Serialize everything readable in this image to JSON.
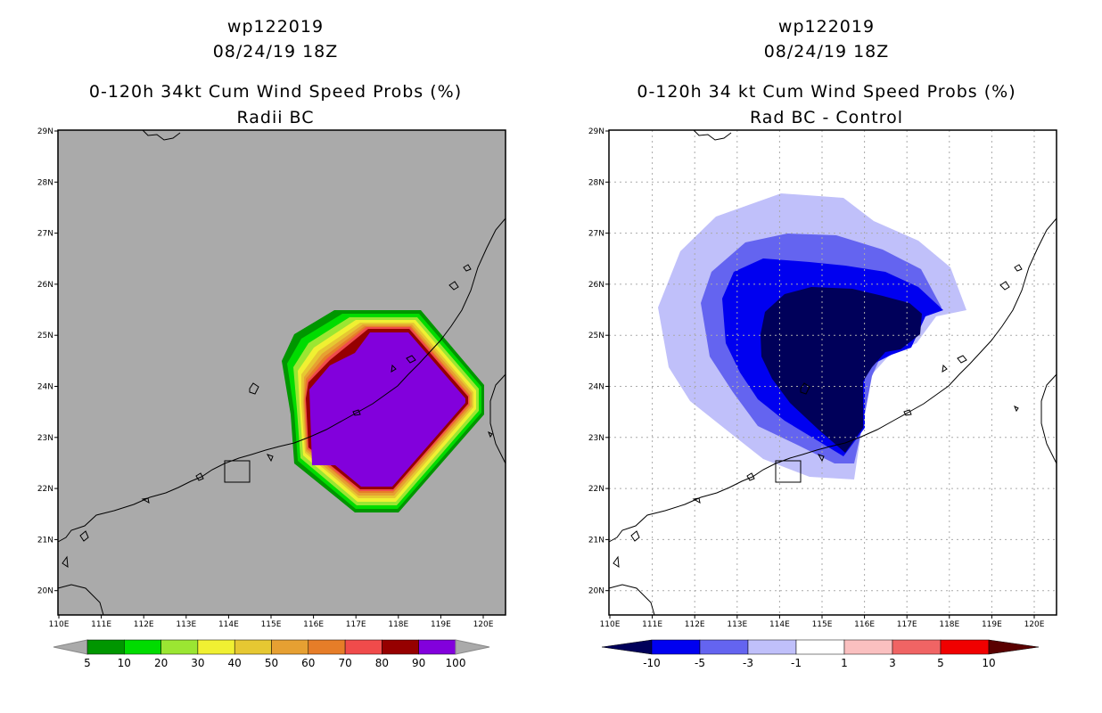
{
  "left": {
    "storm_id": "wp122019",
    "datetime": "08/24/19 18Z",
    "title": "0-120h 34kt Cum Wind Speed Probs (%)",
    "subtitle": "Radii BC",
    "colorbar": {
      "labels": [
        "5",
        "10",
        "20",
        "30",
        "40",
        "50",
        "60",
        "70",
        "80",
        "90",
        "100"
      ],
      "colors": [
        "#009600",
        "#00dc00",
        "#9be632",
        "#f0f032",
        "#e6c832",
        "#e6a032",
        "#e67d28",
        "#f04b4b",
        "#960000",
        "#8200dc"
      ],
      "end_color": "#aaaaaa"
    },
    "background_color": "#aaaaaa"
  },
  "right": {
    "storm_id": "wp122019",
    "datetime": "08/24/19 18Z",
    "title": "0-120h 34 kt Cum Wind Speed Probs (%)",
    "subtitle": "Rad BC - Control",
    "colorbar": {
      "labels": [
        "-10",
        "-5",
        "-3",
        "-1",
        "1",
        "3",
        "5",
        "10"
      ],
      "colors": [
        "#00005a",
        "#0000f0",
        "#6464f0",
        "#c0c0fa",
        "#ffffff",
        "#fac0c0",
        "#f06464",
        "#f00000",
        "#5a0000"
      ]
    }
  },
  "axes": {
    "lon_labels": [
      "110E",
      "111E",
      "112E",
      "113E",
      "114E",
      "115E",
      "116E",
      "117E",
      "118E",
      "119E",
      "120E"
    ],
    "lat_labels": [
      "29N",
      "28N",
      "27N",
      "26N",
      "25N",
      "24N",
      "23N",
      "22N",
      "21N",
      "20N"
    ]
  }
}
